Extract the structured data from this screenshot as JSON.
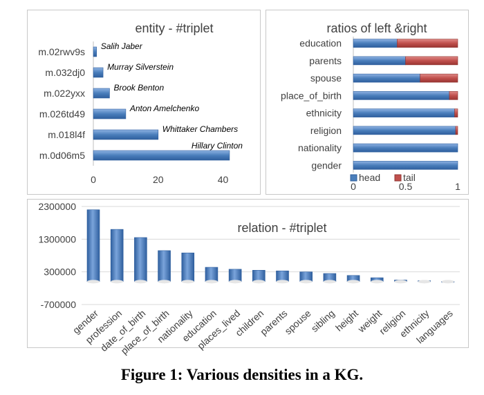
{
  "caption": "Figure 1: Various densities in a KG.",
  "colors": {
    "bar": "#4a7ebb",
    "bar_dark": "#2f5f9e",
    "tail": "#c0504d",
    "grid": "#d9d9d9"
  },
  "chart_data": [
    {
      "type": "bar",
      "orientation": "horizontal",
      "title": "entity - #triplet",
      "categories": [
        "m.02rwv9s",
        "m.032dj0",
        "m.022yxx",
        "m.026td49",
        "m.018l4f",
        "m.0d06m5"
      ],
      "values": [
        1,
        3,
        5,
        10,
        20,
        42
      ],
      "data_labels": [
        "Salih Jaber",
        "Murray Silverstein",
        "Brook Benton",
        "Anton Amelchenko",
        "Whittaker Chambers",
        "Hillary Clinton"
      ],
      "xlim": [
        0,
        45
      ],
      "xticks": [
        0,
        20,
        40
      ],
      "grid": false
    },
    {
      "type": "bar",
      "orientation": "horizontal",
      "stacked": true,
      "title": "ratios of left &right",
      "categories": [
        "education",
        "parents",
        "spouse",
        "place_of_birth",
        "ethnicity",
        "religion",
        "nationality",
        "gender"
      ],
      "series": [
        {
          "name": "head",
          "values": [
            0.42,
            0.5,
            0.64,
            0.92,
            0.97,
            0.98,
            1.0,
            1.0
          ]
        },
        {
          "name": "tail",
          "values": [
            0.58,
            0.5,
            0.36,
            0.08,
            0.03,
            0.02,
            0.0,
            0.0
          ]
        }
      ],
      "xlim": [
        0,
        1
      ],
      "xticks": [
        "0",
        "0.5",
        "1"
      ],
      "legend": "bottom-left",
      "grid": false
    },
    {
      "type": "bar",
      "title": "relation - #triplet",
      "categories": [
        "gender",
        "profession",
        "date_of_birth",
        "place_of_birth",
        "nationality",
        "education",
        "places_lived",
        "children",
        "parents",
        "spouse",
        "sibling",
        "height",
        "weight",
        "religion",
        "ethnicity",
        "languages"
      ],
      "values": [
        2200000,
        1600000,
        1350000,
        950000,
        880000,
        440000,
        380000,
        350000,
        330000,
        300000,
        250000,
        190000,
        120000,
        50000,
        30000,
        10000
      ],
      "ylim": [
        -700000,
        2300000
      ],
      "yticks": [
        "2300000",
        "1300000",
        "300000",
        "-700000"
      ],
      "grid": true
    }
  ]
}
